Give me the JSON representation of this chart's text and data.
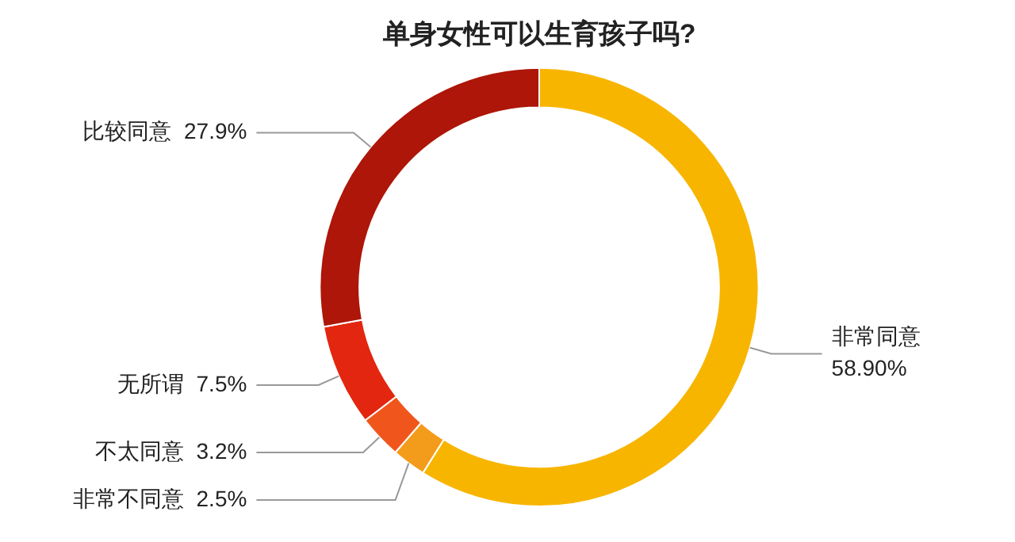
{
  "chart_data": {
    "type": "donut",
    "title": "单身女性可以生育孩子吗?",
    "categories": [
      "非常同意",
      "非常不同意",
      "不太同意",
      "无所谓",
      "比较同意"
    ],
    "values": [
      58.9,
      2.5,
      3.2,
      7.5,
      27.9
    ],
    "value_labels": [
      "58.90%",
      "2.5%",
      "3.2%",
      "7.5%",
      "27.9%"
    ],
    "colors": [
      "#f7b500",
      "#f39c1c",
      "#f0561c",
      "#e3260f",
      "#ad1608"
    ],
    "legend": false
  }
}
